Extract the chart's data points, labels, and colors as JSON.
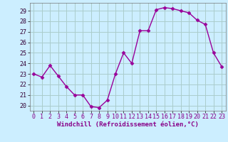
{
  "x": [
    0,
    1,
    2,
    3,
    4,
    5,
    6,
    7,
    8,
    9,
    10,
    11,
    12,
    13,
    14,
    15,
    16,
    17,
    18,
    19,
    20,
    21,
    22,
    23
  ],
  "y": [
    23.0,
    22.7,
    23.8,
    22.8,
    21.8,
    21.0,
    21.0,
    19.9,
    19.8,
    20.5,
    23.0,
    25.0,
    24.0,
    27.1,
    27.1,
    29.1,
    29.3,
    29.2,
    29.0,
    28.8,
    28.1,
    27.7,
    25.0,
    23.7
  ],
  "line_color": "#990099",
  "marker": "D",
  "marker_size": 2.5,
  "bg_color": "#cceeff",
  "grid_color": "#aacccc",
  "xlabel": "Windchill (Refroidissement éolien,°C)",
  "ylim": [
    19.5,
    29.75
  ],
  "yticks": [
    20,
    21,
    22,
    23,
    24,
    25,
    26,
    27,
    28,
    29
  ],
  "xticks": [
    0,
    1,
    2,
    3,
    4,
    5,
    6,
    7,
    8,
    9,
    10,
    11,
    12,
    13,
    14,
    15,
    16,
    17,
    18,
    19,
    20,
    21,
    22,
    23
  ],
  "xlabel_fontsize": 6.5,
  "tick_fontsize": 6.0,
  "line_width": 1.0
}
